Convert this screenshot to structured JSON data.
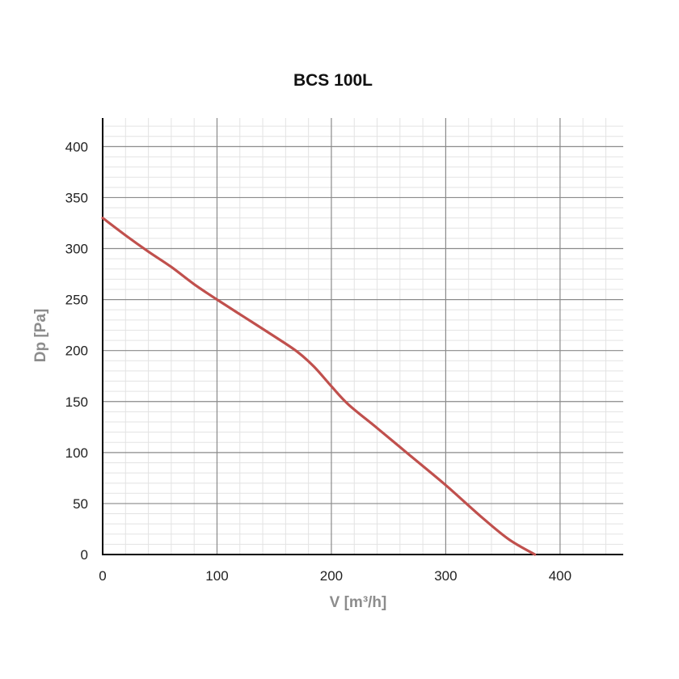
{
  "chart_data": {
    "type": "line",
    "title": "BCS 100L",
    "xlabel": "V [m³/h]",
    "ylabel": "Dp [Pa]",
    "xlim": [
      0,
      455
    ],
    "ylim": [
      0,
      428
    ],
    "x_ticks": [
      0,
      100,
      200,
      300,
      400
    ],
    "y_ticks": [
      0,
      50,
      100,
      150,
      200,
      250,
      300,
      350,
      400
    ],
    "x_minor_step": 20,
    "y_minor_step": 10,
    "grid": true,
    "series": [
      {
        "color": "#c0504d",
        "points": [
          [
            0,
            330
          ],
          [
            20,
            313
          ],
          [
            40,
            297
          ],
          [
            60,
            282
          ],
          [
            80,
            265
          ],
          [
            100,
            250
          ],
          [
            125,
            232
          ],
          [
            150,
            214
          ],
          [
            170,
            199
          ],
          [
            185,
            184
          ],
          [
            200,
            165
          ],
          [
            215,
            147
          ],
          [
            240,
            124
          ],
          [
            270,
            96
          ],
          [
            300,
            68
          ],
          [
            330,
            38
          ],
          [
            355,
            15
          ],
          [
            378,
            0
          ]
        ]
      }
    ]
  }
}
